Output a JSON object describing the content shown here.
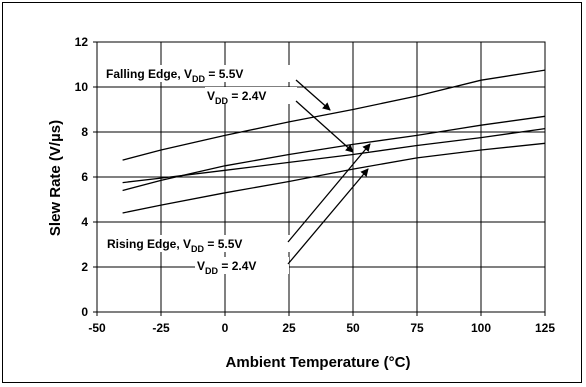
{
  "chart_data": {
    "type": "line",
    "xlabel": "Ambient Temperature (°C)",
    "ylabel": "Slew Rate (V/µs)",
    "xlim": [
      -50,
      125
    ],
    "ylim": [
      0,
      12
    ],
    "xticks": [
      -50,
      -25,
      0,
      25,
      50,
      75,
      100,
      125
    ],
    "yticks": [
      0,
      2,
      4,
      6,
      8,
      10,
      12
    ],
    "grid": true,
    "series": [
      {
        "x": [
          -40,
          -25,
          0,
          25,
          50,
          75,
          100,
          125
        ],
        "y": [
          6.75,
          7.2,
          7.85,
          8.45,
          9.0,
          9.6,
          10.3,
          10.75
        ]
      },
      {
        "x": [
          -40,
          -25,
          0,
          25,
          50,
          75,
          100,
          125
        ],
        "y": [
          5.4,
          5.85,
          6.5,
          7.0,
          7.45,
          7.85,
          8.3,
          8.7
        ]
      },
      {
        "x": [
          -40,
          -25,
          0,
          25,
          50,
          75,
          100,
          125
        ],
        "y": [
          5.75,
          5.95,
          6.3,
          6.65,
          7.0,
          7.4,
          7.75,
          8.15
        ]
      },
      {
        "x": [
          -40,
          -25,
          0,
          25,
          50,
          75,
          100,
          125
        ],
        "y": [
          4.4,
          4.75,
          5.3,
          5.8,
          6.35,
          6.85,
          7.2,
          7.5
        ]
      }
    ],
    "annotations": [
      {
        "id": "falling",
        "prefix": "Falling Edge, V",
        "sub": "DD",
        "suffix": " = 5.5V"
      },
      {
        "id": "falling2",
        "prefix": "V",
        "sub": "DD",
        "suffix": " = 2.4V"
      },
      {
        "id": "rising",
        "prefix": "Rising Edge, V",
        "sub": "DD",
        "suffix": " = 5.5V"
      },
      {
        "id": "rising2",
        "prefix": "V",
        "sub": "DD",
        "suffix": " = 2.4V"
      }
    ]
  }
}
